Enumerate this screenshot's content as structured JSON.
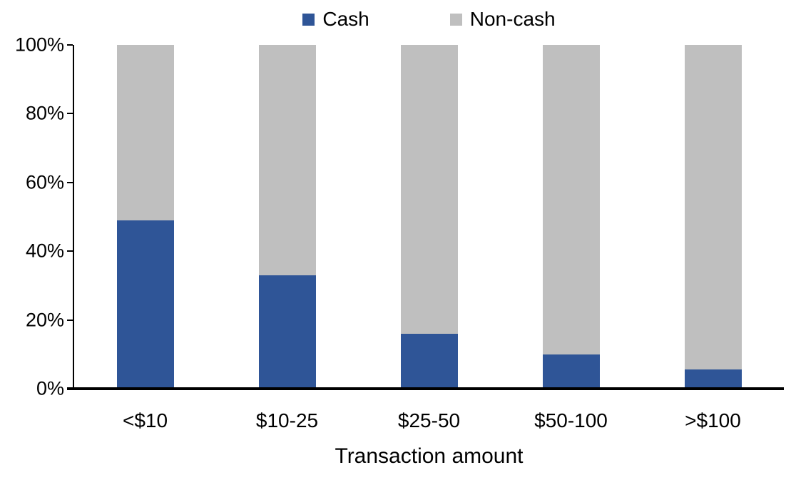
{
  "chart_data": {
    "type": "bar",
    "subtype": "stacked-100-percent-column",
    "title": "",
    "xlabel": "Transaction amount",
    "ylabel": "",
    "categories": [
      "<$10",
      "$10-25",
      "$25-50",
      "$50-100",
      ">$100"
    ],
    "series": [
      {
        "name": "Cash",
        "color": "#2F5597",
        "values": [
          49,
          33,
          16,
          10,
          5.5
        ]
      },
      {
        "name": "Non-cash",
        "color": "#BFBFBF",
        "values": [
          51,
          67,
          84,
          90,
          94.5
        ]
      }
    ],
    "ylim": [
      0,
      100
    ],
    "y_ticks": [
      {
        "value": 0,
        "label": "0%"
      },
      {
        "value": 20,
        "label": "20%"
      },
      {
        "value": 40,
        "label": "40%"
      },
      {
        "value": 60,
        "label": "60%"
      },
      {
        "value": 80,
        "label": "80%"
      },
      {
        "value": 100,
        "label": "100%"
      }
    ],
    "grid": false,
    "legend_position": "top-center",
    "axis_color": "#000000",
    "background_color": "#FFFFFF",
    "text_color": "#000000"
  }
}
